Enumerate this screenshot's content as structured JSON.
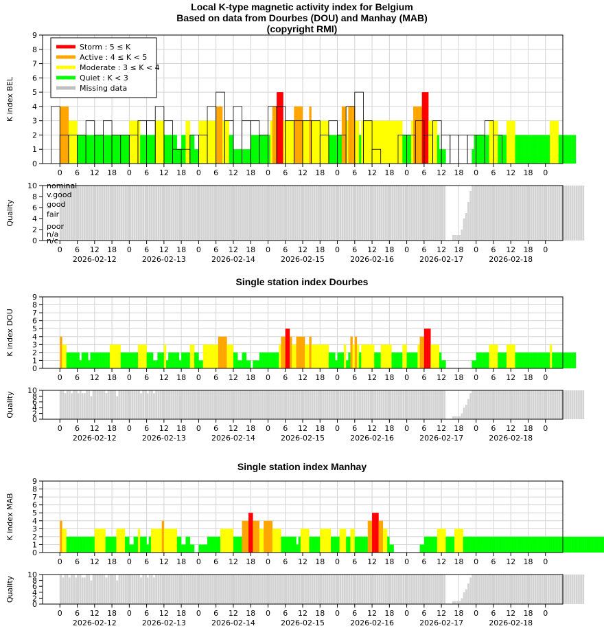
{
  "colors": {
    "storm": "#ff0000",
    "active": "#ffa500",
    "moderate": "#ffff00",
    "quiet": "#00ff00",
    "missing": "#bebebe",
    "quality_bar": "#d3d3d3",
    "grid": "#d3d3d3"
  },
  "x_hour_ticks": [
    "0",
    "6",
    "12",
    "18",
    "0",
    "6",
    "12",
    "18",
    "0",
    "6",
    "12",
    "18",
    "0",
    "6",
    "12",
    "18",
    "0",
    "6",
    "12",
    "18",
    "0",
    "6",
    "12",
    "18",
    "0",
    "6",
    "12",
    "18",
    "0"
  ],
  "date_labels": [
    "2026-02-12",
    "2026-02-13",
    "2026-02-14",
    "2026-02-15",
    "2026-02-16",
    "2026-02-17",
    "2026-02-18"
  ],
  "legend": {
    "items": [
      {
        "label": "Storm : 5 ≤ K",
        "color": "#ff0000"
      },
      {
        "label": "Active : 4 ≤ K < 5",
        "color": "#ffa500"
      },
      {
        "label": "Moderate : 3 ≤ K < 4",
        "color": "#ffff00"
      },
      {
        "label": "Quiet : K < 3",
        "color": "#00ff00"
      },
      {
        "label": "Missing data",
        "color": "#bebebe"
      }
    ]
  },
  "quality_levels": [
    "nominal",
    "v.good",
    "good",
    "fair",
    "poor",
    "n/a",
    "n/c"
  ],
  "chart_data": [
    {
      "type": "bar",
      "title": "Local K-type magnetic activity index for Belgium\nBased on data from Dourbes (DOU) and Manhay (MAB)\n(copyright RMI)",
      "ylabel": "K index BEL",
      "ylim": [
        0,
        9
      ],
      "x_range_hours": [
        -6,
        174
      ],
      "grid": true,
      "legend_position": "top-left",
      "three_hour_K": [
        4,
        2,
        2,
        2,
        3,
        2,
        3,
        2,
        2,
        2,
        3,
        3,
        4,
        3,
        1,
        1,
        2,
        2,
        4,
        5,
        3,
        4,
        3,
        3,
        2,
        4,
        4,
        3,
        3,
        3,
        3,
        2,
        3,
        2,
        4,
        5,
        3,
        1,
        0,
        0,
        2,
        2,
        3,
        2,
        3,
        2,
        2,
        2,
        2,
        2,
        3,
        2
      ],
      "subbar_K": [
        4,
        4,
        4,
        4,
        3,
        3,
        3,
        3,
        2,
        2,
        2,
        2,
        2,
        2,
        2,
        2,
        2,
        2,
        2,
        2,
        2,
        2,
        2,
        2,
        2,
        2,
        2,
        2,
        2,
        2,
        2,
        2,
        3,
        3,
        3,
        3,
        3,
        2,
        2,
        2,
        2,
        2,
        2,
        2,
        3,
        3,
        3,
        3,
        2,
        2,
        2,
        2,
        2,
        2,
        1,
        1,
        2,
        2,
        3,
        3,
        2,
        2,
        1,
        1,
        3,
        3,
        3,
        3,
        3,
        3,
        3,
        3,
        4,
        4,
        4,
        3,
        3,
        3,
        2,
        2,
        1,
        1,
        1,
        1,
        1,
        1,
        1,
        1,
        2,
        2,
        2,
        2,
        2,
        2,
        2,
        2,
        2,
        3,
        4,
        4,
        5,
        5,
        5,
        3,
        3,
        3,
        3,
        3,
        4,
        4,
        4,
        4,
        3,
        3,
        3,
        4,
        3,
        3,
        3,
        3,
        3,
        3,
        3,
        3,
        2,
        2,
        2,
        2,
        2,
        2,
        4,
        4,
        3,
        4,
        4,
        4,
        3,
        3,
        2,
        3,
        3,
        3,
        3,
        3,
        3,
        3,
        3,
        3,
        3,
        3,
        3,
        3,
        3,
        3,
        3,
        3,
        3,
        3,
        2,
        2,
        2,
        2,
        3,
        4,
        4,
        4,
        4,
        5,
        5,
        5,
        3,
        3,
        3,
        3,
        2,
        1,
        1,
        1,
        null,
        null,
        null,
        null,
        null,
        null,
        null,
        null,
        null,
        null,
        null,
        null,
        1,
        2,
        2,
        2,
        2,
        2,
        2,
        2,
        3,
        3,
        3,
        3,
        2,
        2,
        2,
        2,
        3,
        3,
        3,
        3,
        2,
        2,
        2,
        2,
        2,
        2,
        2,
        2,
        2,
        2,
        2,
        2,
        2,
        2,
        2,
        2,
        3,
        3,
        3,
        3,
        2,
        2,
        2,
        2,
        2,
        2,
        2,
        2
      ],
      "quality": [
        10,
        10,
        10,
        10,
        10,
        10,
        10,
        10,
        10,
        10,
        10,
        10,
        10,
        10,
        10,
        10,
        10,
        10,
        10,
        10,
        10,
        10,
        10,
        10,
        10,
        10,
        10,
        10,
        10,
        10,
        10,
        10,
        10,
        10,
        10,
        10,
        10,
        10,
        10,
        10,
        10,
        10,
        10,
        10,
        10,
        10,
        10,
        10,
        10,
        10,
        10,
        10,
        10,
        10,
        10,
        10,
        10,
        10,
        10,
        10,
        10,
        10,
        10,
        10,
        10,
        10,
        10,
        10,
        10,
        10,
        10,
        10,
        10,
        10,
        10,
        10,
        10,
        10,
        10,
        10,
        10,
        10,
        10,
        10,
        10,
        10,
        10,
        10,
        10,
        10,
        10,
        10,
        10,
        10,
        10,
        10,
        10,
        10,
        10,
        10,
        10,
        10,
        10,
        10,
        10,
        10,
        10,
        10,
        10,
        10,
        10,
        10,
        10,
        10,
        10,
        10,
        10,
        10,
        10,
        10,
        10,
        10,
        10,
        10,
        10,
        10,
        10,
        10,
        10,
        10,
        10,
        10,
        10,
        10,
        10,
        10,
        10,
        10,
        10,
        10,
        10,
        10,
        10,
        10,
        10,
        10,
        10,
        10,
        10,
        10,
        10,
        10,
        10,
        10,
        10,
        10,
        10,
        10,
        10,
        10,
        10,
        10,
        10,
        10,
        10,
        10,
        10,
        10,
        10,
        10,
        10,
        10,
        10,
        10,
        10,
        10,
        10,
        10,
        0,
        0,
        0,
        1,
        1,
        1,
        1,
        2,
        4,
        5,
        7,
        9,
        10,
        10,
        10,
        10,
        10,
        10,
        10,
        10,
        10,
        10,
        10,
        10,
        10,
        10,
        10,
        10,
        10,
        10,
        10,
        10,
        10,
        10,
        10,
        10,
        10,
        10,
        10,
        10,
        10,
        10,
        10,
        10,
        10,
        10,
        10,
        10,
        10,
        10,
        10,
        10,
        10,
        10,
        10,
        10,
        10,
        10,
        10,
        10,
        10,
        10,
        10,
        10
      ]
    },
    {
      "type": "bar",
      "title": "Single station index Dourbes",
      "ylabel": "K index DOU",
      "ylim": [
        0,
        9
      ],
      "x_range_hours": [
        -6,
        174
      ],
      "grid": true,
      "subbar_K": [
        4,
        3,
        3,
        2,
        2,
        2,
        2,
        2,
        2,
        1,
        2,
        2,
        2,
        1,
        2,
        2,
        2,
        2,
        2,
        2,
        2,
        2,
        2,
        3,
        3,
        3,
        3,
        3,
        2,
        2,
        2,
        2,
        2,
        2,
        2,
        2,
        3,
        3,
        3,
        3,
        2,
        2,
        2,
        1,
        1,
        2,
        2,
        2,
        3,
        1,
        2,
        2,
        2,
        2,
        2,
        1,
        2,
        2,
        2,
        2,
        3,
        3,
        2,
        2,
        1,
        1,
        3,
        3,
        3,
        3,
        3,
        3,
        3,
        4,
        4,
        4,
        4,
        3,
        3,
        3,
        2,
        2,
        1,
        1,
        2,
        2,
        1,
        1,
        0,
        1,
        1,
        1,
        2,
        2,
        2,
        2,
        2,
        2,
        2,
        2,
        2,
        3,
        4,
        4,
        5,
        5,
        4,
        3,
        3,
        4,
        4,
        4,
        4,
        3,
        3,
        4,
        3,
        3,
        3,
        3,
        3,
        3,
        3,
        3,
        2,
        2,
        2,
        1,
        2,
        2,
        2,
        3,
        1,
        2,
        4,
        3,
        4,
        3,
        2,
        3,
        3,
        3,
        3,
        3,
        3,
        2,
        2,
        2,
        3,
        3,
        3,
        3,
        3,
        2,
        2,
        2,
        2,
        2,
        3,
        3,
        2,
        2,
        2,
        2,
        2,
        3,
        4,
        4,
        5,
        5,
        5,
        3,
        3,
        3,
        3,
        2,
        1,
        1,
        null,
        null,
        null,
        null,
        null,
        null,
        null,
        null,
        null,
        null,
        null,
        null,
        1,
        1,
        2,
        2,
        2,
        2,
        2,
        2,
        3,
        3,
        3,
        3,
        2,
        2,
        2,
        2,
        3,
        3,
        3,
        3,
        2,
        2,
        2,
        2,
        2,
        2,
        2,
        2,
        2,
        2,
        2,
        2,
        2,
        2,
        2,
        2,
        3,
        2,
        2,
        2,
        2,
        2,
        2,
        2,
        2,
        2,
        2,
        2
      ],
      "quality": [
        10,
        10,
        9,
        10,
        10,
        9,
        10,
        10,
        9,
        10,
        9,
        9,
        10,
        10,
        8,
        10,
        10,
        10,
        10,
        10,
        10,
        9,
        10,
        10,
        10,
        10,
        8,
        10,
        10,
        10,
        10,
        10,
        10,
        10,
        10,
        10,
        10,
        9,
        10,
        10,
        9,
        10,
        10,
        9,
        10,
        10,
        10,
        10,
        10,
        10,
        10,
        10,
        10,
        10,
        10,
        10,
        10,
        10,
        10,
        10,
        10,
        10,
        10,
        10,
        10,
        10,
        10,
        10,
        10,
        10,
        10,
        10,
        10,
        10,
        10,
        10,
        10,
        10,
        10,
        10,
        10,
        10,
        10,
        10,
        10,
        10,
        10,
        10,
        10,
        10,
        10,
        10,
        10,
        10,
        10,
        10,
        10,
        10,
        10,
        10,
        10,
        10,
        10,
        10,
        10,
        10,
        10,
        10,
        10,
        10,
        10,
        10,
        10,
        10,
        10,
        10,
        10,
        10,
        10,
        10,
        10,
        10,
        10,
        10,
        10,
        10,
        10,
        10,
        10,
        10,
        10,
        10,
        10,
        10,
        10,
        10,
        10,
        10,
        10,
        10,
        10,
        10,
        10,
        10,
        10,
        10,
        10,
        10,
        10,
        10,
        10,
        10,
        10,
        10,
        10,
        10,
        10,
        10,
        10,
        10,
        10,
        10,
        10,
        10,
        10,
        10,
        10,
        10,
        10,
        10,
        10,
        10,
        10,
        10,
        10,
        10,
        10,
        10,
        0,
        0,
        0,
        1,
        1,
        1,
        1,
        2,
        4,
        5,
        7,
        9,
        10,
        10,
        10,
        10,
        10,
        10,
        10,
        10,
        10,
        10,
        10,
        10,
        10,
        10,
        10,
        10,
        10,
        10,
        10,
        10,
        10,
        10,
        10,
        10,
        10,
        10,
        10,
        10,
        10,
        10,
        10,
        10,
        10,
        10,
        10,
        10,
        10,
        10,
        10,
        10,
        10,
        10,
        10,
        10,
        10,
        10,
        10,
        10,
        10,
        10,
        10,
        10
      ]
    },
    {
      "type": "bar",
      "title": "Single station index Manhay",
      "ylabel": "K index MAB",
      "ylim": [
        0,
        9
      ],
      "x_range_hours": [
        -6,
        174
      ],
      "grid": true,
      "subbar_K": [
        4,
        3,
        3,
        2,
        2,
        2,
        2,
        2,
        2,
        2,
        2,
        2,
        2,
        2,
        2,
        2,
        3,
        3,
        3,
        3,
        3,
        2,
        2,
        2,
        2,
        2,
        3,
        3,
        3,
        3,
        2,
        2,
        1,
        1,
        2,
        2,
        3,
        2,
        2,
        2,
        1,
        2,
        3,
        3,
        3,
        3,
        3,
        4,
        3,
        3,
        3,
        3,
        3,
        3,
        2,
        2,
        1,
        1,
        2,
        2,
        1,
        1,
        0,
        0,
        1,
        1,
        1,
        1,
        2,
        2,
        2,
        2,
        2,
        2,
        3,
        3,
        3,
        3,
        3,
        3,
        2,
        2,
        2,
        2,
        4,
        4,
        4,
        5,
        5,
        4,
        4,
        4,
        3,
        3,
        4,
        4,
        4,
        4,
        3,
        3,
        3,
        3,
        2,
        2,
        2,
        2,
        2,
        2,
        2,
        1,
        2,
        3,
        3,
        3,
        3,
        2,
        2,
        2,
        2,
        2,
        3,
        3,
        3,
        3,
        3,
        2,
        2,
        2,
        2,
        3,
        3,
        3,
        2,
        2,
        3,
        3,
        2,
        2,
        2,
        2,
        2,
        2,
        4,
        4,
        5,
        5,
        5,
        4,
        4,
        3,
        3,
        2,
        1,
        1,
        null,
        null,
        null,
        null,
        null,
        null,
        null,
        null,
        null,
        null,
        null,
        null,
        1,
        1,
        2,
        2,
        2,
        2,
        2,
        2,
        3,
        3,
        3,
        3,
        2,
        2,
        2,
        2,
        3,
        3,
        3,
        3,
        2,
        2,
        2,
        2,
        2,
        2,
        2,
        2,
        2,
        2,
        2,
        2,
        2,
        2,
        2,
        2,
        2,
        2,
        2,
        2,
        2,
        2,
        2,
        2,
        2,
        2,
        2,
        2,
        2,
        2,
        2,
        2,
        2,
        2,
        2,
        2,
        2,
        2,
        2,
        2,
        2,
        2,
        2,
        2,
        2,
        2,
        2,
        2,
        2,
        2,
        2,
        2,
        2,
        2,
        2,
        2,
        2,
        2,
        2,
        2,
        2,
        2,
        2,
        2,
        2,
        2,
        2,
        2,
        2,
        2,
        2
      ],
      "quality": [
        10,
        9,
        10,
        10,
        9,
        10,
        10,
        9,
        10,
        10,
        9,
        9,
        10,
        10,
        8,
        10,
        10,
        10,
        10,
        10,
        10,
        9,
        10,
        10,
        10,
        10,
        8,
        10,
        10,
        10,
        10,
        10,
        10,
        10,
        10,
        10,
        10,
        9,
        10,
        10,
        9,
        10,
        10,
        9,
        10,
        10,
        10,
        10,
        10,
        10,
        10,
        10,
        10,
        10,
        10,
        10,
        10,
        10,
        10,
        10,
        10,
        10,
        10,
        10,
        10,
        10,
        10,
        10,
        10,
        10,
        10,
        10,
        10,
        10,
        10,
        10,
        10,
        10,
        10,
        10,
        10,
        10,
        10,
        10,
        10,
        10,
        10,
        10,
        10,
        10,
        10,
        10,
        10,
        10,
        10,
        10,
        10,
        10,
        10,
        10,
        10,
        10,
        10,
        10,
        10,
        10,
        10,
        10,
        10,
        10,
        10,
        10,
        10,
        10,
        10,
        10,
        10,
        10,
        10,
        10,
        10,
        10,
        10,
        10,
        10,
        10,
        10,
        10,
        10,
        10,
        10,
        10,
        10,
        10,
        10,
        10,
        10,
        10,
        10,
        10,
        10,
        10,
        10,
        10,
        10,
        10,
        10,
        10,
        10,
        10,
        10,
        10,
        10,
        10,
        10,
        10,
        10,
        10,
        10,
        10,
        10,
        10,
        10,
        10,
        10,
        10,
        10,
        10,
        10,
        10,
        10,
        10,
        10,
        10,
        10,
        10,
        10,
        10,
        0,
        0,
        0,
        1,
        1,
        1,
        1,
        2,
        4,
        5,
        7,
        9,
        10,
        10,
        10,
        10,
        10,
        10,
        10,
        10,
        10,
        10,
        10,
        10,
        10,
        10,
        10,
        10,
        10,
        10,
        10,
        10,
        10,
        10,
        10,
        10,
        10,
        10,
        10,
        10,
        10,
        10,
        10,
        10,
        10,
        10,
        10,
        10,
        10,
        10,
        10,
        10,
        10,
        10,
        10,
        10,
        10,
        10,
        10,
        10,
        10,
        10,
        10,
        10
      ]
    }
  ]
}
